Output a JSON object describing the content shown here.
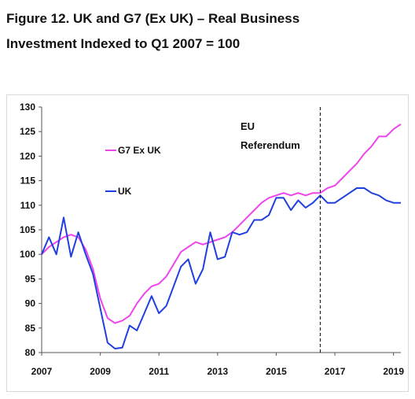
{
  "figure": {
    "title_line1": "Figure 12. UK and G7 (Ex UK) – Real Business",
    "title_line2": "Investment Indexed to Q1 2007 = 100"
  },
  "chart_data": {
    "type": "line",
    "title": "Figure 12. UK and G7 (Ex UK) – Real Business Investment Indexed to Q1 2007 = 100",
    "xlabel": "",
    "ylabel": "",
    "xlim": [
      2007,
      2019.25
    ],
    "ylim": [
      80,
      130
    ],
    "x_ticks": [
      "2007",
      "2009",
      "2011",
      "2013",
      "2015",
      "2017",
      "2019"
    ],
    "y_ticks": [
      "80",
      "85",
      "90",
      "95",
      "100",
      "105",
      "110",
      "115",
      "120",
      "125",
      "130"
    ],
    "grid": false,
    "legend_position": "left",
    "annotation": {
      "line1": "EU",
      "line2": "Referendum",
      "x": 2016.5
    },
    "x": [
      2007.0,
      2007.25,
      2007.5,
      2007.75,
      2008.0,
      2008.25,
      2008.5,
      2008.75,
      2009.0,
      2009.25,
      2009.5,
      2009.75,
      2010.0,
      2010.25,
      2010.5,
      2010.75,
      2011.0,
      2011.25,
      2011.5,
      2011.75,
      2012.0,
      2012.25,
      2012.5,
      2012.75,
      2013.0,
      2013.25,
      2013.5,
      2013.75,
      2014.0,
      2014.25,
      2014.5,
      2014.75,
      2015.0,
      2015.25,
      2015.5,
      2015.75,
      2016.0,
      2016.25,
      2016.5,
      2016.75,
      2017.0,
      2017.25,
      2017.5,
      2017.75,
      2018.0,
      2018.25,
      2018.5,
      2018.75,
      2019.0,
      2019.25
    ],
    "series": [
      {
        "name": "G7 Ex UK",
        "color": "#ee44ee",
        "values": [
          100.0,
          101.5,
          102.5,
          103.5,
          104.0,
          103.5,
          101.0,
          97.0,
          91.0,
          87.0,
          86.0,
          86.5,
          87.5,
          90.0,
          92.0,
          93.5,
          94.0,
          95.5,
          98.0,
          100.5,
          101.5,
          102.5,
          102.0,
          102.5,
          103.0,
          103.5,
          104.5,
          106.0,
          107.5,
          109.0,
          110.5,
          111.5,
          112.0,
          112.5,
          112.0,
          112.5,
          112.0,
          112.5,
          112.5,
          113.5,
          114.0,
          115.5,
          117.0,
          118.5,
          120.5,
          122.0,
          124.0,
          124.0,
          125.5,
          126.5
        ]
      },
      {
        "name": "UK",
        "color": "#1f3fe0",
        "values": [
          100.0,
          103.5,
          100.0,
          107.5,
          99.5,
          104.5,
          100.0,
          96.0,
          89.0,
          82.0,
          80.8,
          81.0,
          85.5,
          84.5,
          88.0,
          91.5,
          88.0,
          89.5,
          93.5,
          97.5,
          99.0,
          94.0,
          97.0,
          104.5,
          99.0,
          99.5,
          104.5,
          104.0,
          104.5,
          107.0,
          107.0,
          108.0,
          111.5,
          111.5,
          109.0,
          111.0,
          109.5,
          110.5,
          112.0,
          110.5,
          110.5,
          111.5,
          112.5,
          113.5,
          113.5,
          112.5,
          112.0,
          111.0,
          110.5,
          110.5
        ]
      }
    ]
  }
}
